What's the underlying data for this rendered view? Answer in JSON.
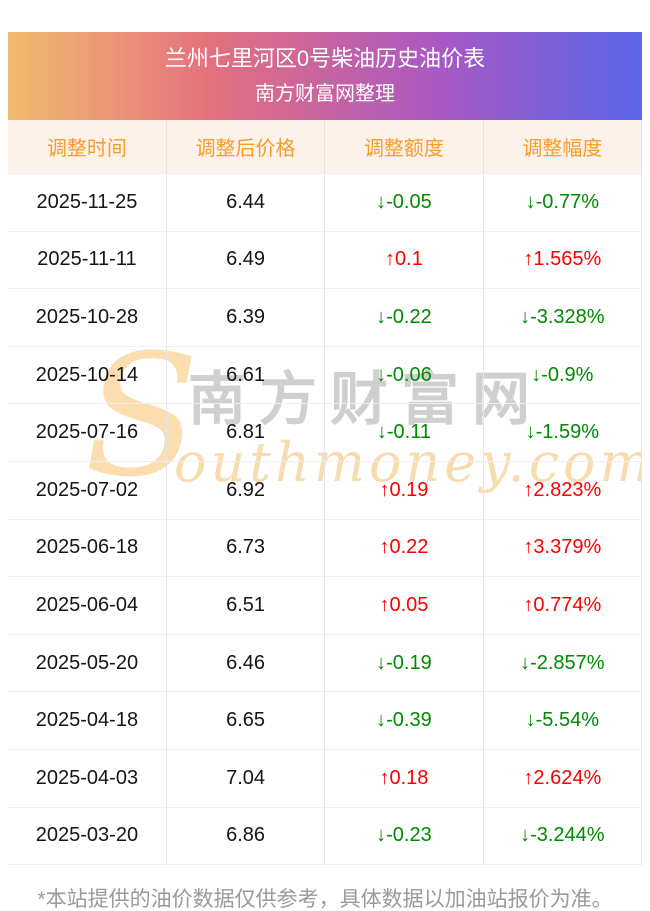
{
  "page": {
    "title_line1": "兰州七里河区0号柴油历史油价表",
    "title_line2": "南方财富网整理",
    "footer_note": "*本站提供的油价数据仅供参考，具体数据以加油站报价为准。"
  },
  "colors": {
    "banner_gradient_start": "#f2bc6f",
    "banner_gradient_mid1": "#e4707d",
    "banner_gradient_mid2": "#a958c4",
    "banner_gradient_end": "#5a67e9",
    "table_header_bg": "#fdf2e9",
    "table_header_text": "#f79b2d",
    "up_red": "#fb0000",
    "down_green": "#008a00",
    "watermark_gray": "#cfcfcf",
    "watermark_peach": "#f8dcae",
    "footer_gray": "#9a9a9a"
  },
  "watermark": {
    "initial": "S",
    "chinese": "南方财富网",
    "english": "outhmoney.com"
  },
  "table": {
    "columns": [
      "调整时间",
      "调整后价格",
      "调整额度",
      "调整幅度"
    ],
    "rows": [
      {
        "date": "2025-11-25",
        "price": "6.44",
        "change": "↓-0.05",
        "pct": "↓-0.77%",
        "dir": "down"
      },
      {
        "date": "2025-11-11",
        "price": "6.49",
        "change": "↑0.1",
        "pct": "↑1.565%",
        "dir": "up"
      },
      {
        "date": "2025-10-28",
        "price": "6.39",
        "change": "↓-0.22",
        "pct": "↓-3.328%",
        "dir": "down"
      },
      {
        "date": "2025-10-14",
        "price": "6.61",
        "change": "↓-0.06",
        "pct": "↓-0.9%",
        "dir": "down"
      },
      {
        "date": "2025-07-16",
        "price": "6.81",
        "change": "↓-0.11",
        "pct": "↓-1.59%",
        "dir": "down"
      },
      {
        "date": "2025-07-02",
        "price": "6.92",
        "change": "↑0.19",
        "pct": "↑2.823%",
        "dir": "up"
      },
      {
        "date": "2025-06-18",
        "price": "6.73",
        "change": "↑0.22",
        "pct": "↑3.379%",
        "dir": "up"
      },
      {
        "date": "2025-06-04",
        "price": "6.51",
        "change": "↑0.05",
        "pct": "↑0.774%",
        "dir": "up"
      },
      {
        "date": "2025-05-20",
        "price": "6.46",
        "change": "↓-0.19",
        "pct": "↓-2.857%",
        "dir": "down"
      },
      {
        "date": "2025-04-18",
        "price": "6.65",
        "change": "↓-0.39",
        "pct": "↓-5.54%",
        "dir": "down"
      },
      {
        "date": "2025-04-03",
        "price": "7.04",
        "change": "↑0.18",
        "pct": "↑2.624%",
        "dir": "up"
      },
      {
        "date": "2025-03-20",
        "price": "6.86",
        "change": "↓-0.23",
        "pct": "↓-3.244%",
        "dir": "down"
      }
    ]
  }
}
